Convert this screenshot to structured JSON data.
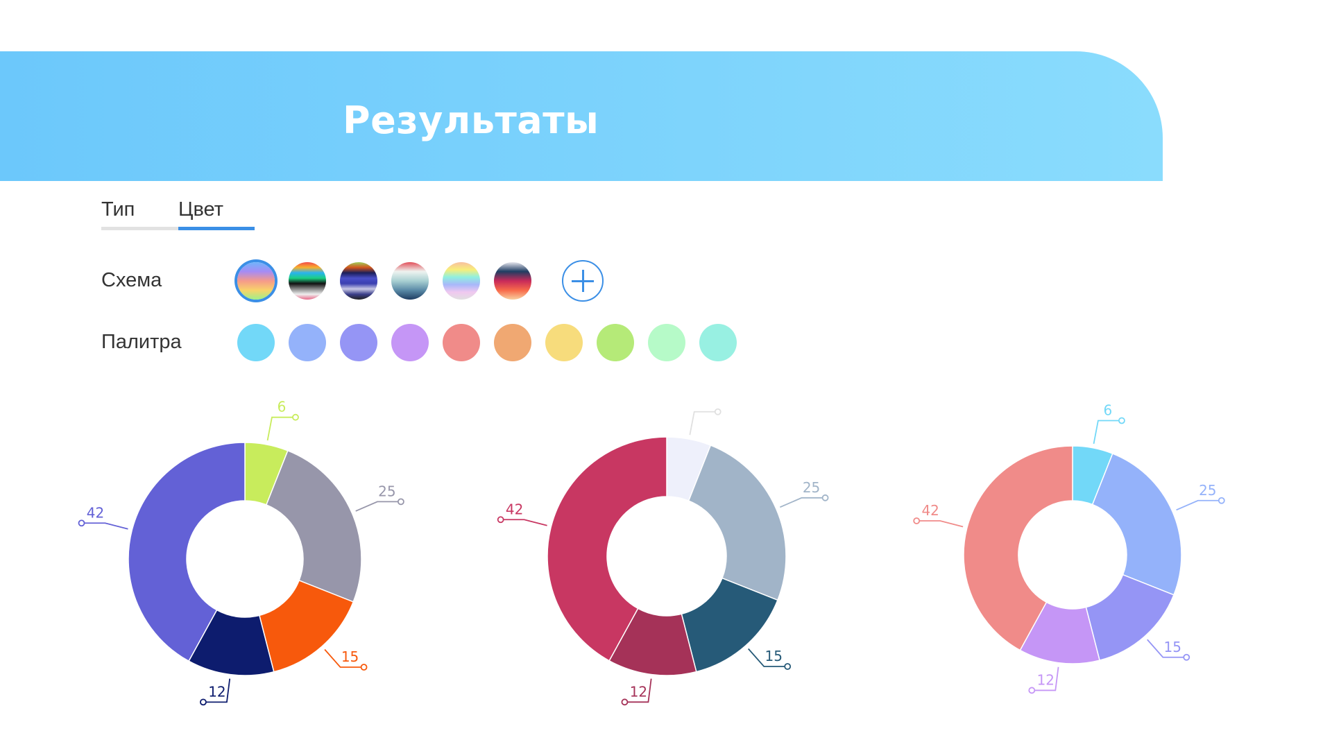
{
  "header": {
    "title": "Результаты"
  },
  "tabs": [
    {
      "label": "Тип",
      "active": false
    },
    {
      "label": "Цвет",
      "active": true
    }
  ],
  "accent": "#3b8fe6",
  "scheme": {
    "label": "Схема",
    "add_icon": "plus-icon",
    "options": [
      {
        "gradient": [
          "#6fb4fb",
          "#a58cf5",
          "#f59a8a",
          "#f8d36a",
          "#9ef08a"
        ],
        "selected": true
      },
      {
        "gradient": [
          "#f24a4a",
          "#f8b02c",
          "#29b3f0",
          "#1bcf82",
          "#111",
          "#888",
          "#eee",
          "#e86a8a"
        ],
        "selected": false
      },
      {
        "gradient": [
          "#9fce5c",
          "#d3561c",
          "#1b1f5a",
          "#4a4fc8",
          "#3a3fb0",
          "#c8c8e6",
          "#3b3f8a",
          "#222"
        ],
        "selected": false
      },
      {
        "gradient": [
          "#e2505a",
          "#eef3f0",
          "#a9d0d2",
          "#5a8aa6",
          "#1f3d62"
        ],
        "selected": false
      },
      {
        "gradient": [
          "#f8c0a0",
          "#f8ee7a",
          "#90f0e0",
          "#a8b8fa",
          "#f0c8f0",
          "#e0e0e0"
        ],
        "selected": false
      },
      {
        "gradient": [
          "#e6e6ee",
          "#1f3d62",
          "#c82a5a",
          "#f86a4a",
          "#f8d0a0"
        ],
        "selected": false
      }
    ]
  },
  "palette": {
    "label": "Палитра",
    "colors": [
      "#72d8f8",
      "#94b2fa",
      "#9595f5",
      "#c596f6",
      "#f08b89",
      "#f0a872",
      "#f7dc7c",
      "#b5ea78",
      "#b6fac8",
      "#98f0e2"
    ]
  },
  "chart_data": [
    {
      "type": "pie",
      "donut": true,
      "values": [
        6,
        25,
        15,
        12,
        42
      ],
      "labels": [
        "6",
        "25",
        "15",
        "12",
        "42"
      ],
      "colors": [
        "#c8ec5c",
        "#9796aa",
        "#f7590c",
        "#0d1c6e",
        "#6361d6"
      ]
    },
    {
      "type": "pie",
      "donut": true,
      "values": [
        6,
        25,
        15,
        12,
        42
      ],
      "labels": [
        "",
        "25",
        "15",
        "12",
        "42"
      ],
      "colors": [
        "#eef0fb",
        "#a1b4c8",
        "#265a78",
        "#a53258",
        "#c83762"
      ],
      "label_colors": [
        "#e0e0e0",
        "#a1b4c8",
        "#265a78",
        "#a53258",
        "#c83762"
      ]
    },
    {
      "type": "pie",
      "donut": true,
      "values": [
        6,
        25,
        15,
        12,
        42
      ],
      "labels": [
        "6",
        "25",
        "15",
        "12",
        "42"
      ],
      "colors": [
        "#72d8f8",
        "#94b2fa",
        "#9595f5",
        "#c596f6",
        "#f08b89"
      ]
    }
  ]
}
